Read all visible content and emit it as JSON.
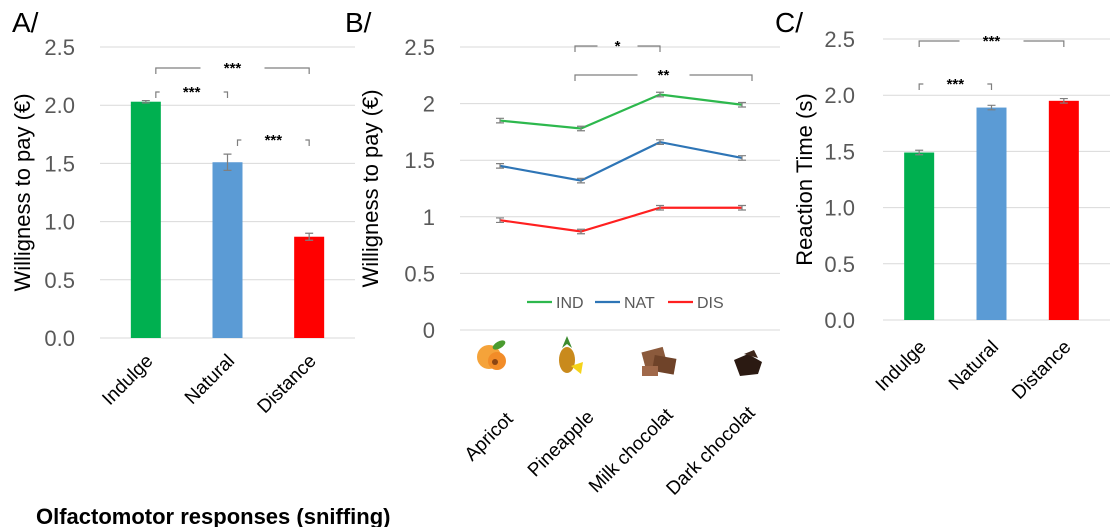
{
  "footer_text": "Olfactomotor responses (sniffing)",
  "chart_data": [
    {
      "type": "bar",
      "panel_label": "A/",
      "ylabel": "Willigness to pay (€)",
      "ylim": [
        0,
        2.5
      ],
      "yticks": [
        "0.0",
        "0.5",
        "1.0",
        "1.5",
        "2.0",
        "2.5"
      ],
      "categories": [
        "Indulge",
        "Natural",
        "Distance"
      ],
      "values": [
        2.03,
        1.51,
        0.87
      ],
      "errors": [
        0.01,
        0.07,
        0.03
      ],
      "colors": [
        "#00b050",
        "#5b9bd5",
        "#ff0000"
      ],
      "grid": true,
      "significance": [
        {
          "from": 0,
          "to": 1,
          "label": "***"
        },
        {
          "from": 1,
          "to": 2,
          "label": "***"
        },
        {
          "from": 0,
          "to": 2,
          "label": "***"
        }
      ]
    },
    {
      "type": "line",
      "panel_label": "B/",
      "ylabel": "Willigness to pay (€)",
      "ylim": [
        0,
        2.5
      ],
      "yticks": [
        "0",
        "0.5",
        "1",
        "1.5",
        "2",
        "2.5"
      ],
      "categories": [
        "Apricot",
        "Pineapple",
        "Milk chocolat",
        "Dark chocolat"
      ],
      "series": [
        {
          "name": "IND",
          "color": "#2db84d",
          "values": [
            1.85,
            1.78,
            2.08,
            1.99
          ],
          "errors": [
            0.02,
            0.02,
            0.02,
            0.02
          ]
        },
        {
          "name": "NAT",
          "color": "#2e75b6",
          "values": [
            1.45,
            1.32,
            1.66,
            1.52
          ],
          "errors": [
            0.02,
            0.02,
            0.02,
            0.02
          ]
        },
        {
          "name": "DIS",
          "color": "#ff2020",
          "values": [
            0.97,
            0.87,
            1.08,
            1.08
          ],
          "errors": [
            0.02,
            0.02,
            0.02,
            0.02
          ]
        }
      ],
      "legend_position": "bottom-inside",
      "grid": true,
      "food_icons": [
        "apricot-icon",
        "pineapple-icon",
        "milk-chocolate-icon",
        "dark-chocolate-icon"
      ],
      "significance": [
        {
          "from": 1,
          "to": 2,
          "label": "*"
        },
        {
          "from": 1,
          "to": 3,
          "label": "**"
        }
      ]
    },
    {
      "type": "bar",
      "panel_label": "C/",
      "ylabel": "Reaction  Time (s)",
      "ylim": [
        0,
        2.5
      ],
      "yticks": [
        "0.0",
        "0.5",
        "1.0",
        "1.5",
        "2.0",
        "2.5"
      ],
      "categories": [
        "Indulge",
        "Natural",
        "Distance"
      ],
      "values": [
        1.49,
        1.89,
        1.95
      ],
      "errors": [
        0.02,
        0.02,
        0.02
      ],
      "colors": [
        "#00b050",
        "#5b9bd5",
        "#ff0000"
      ],
      "grid": true,
      "significance": [
        {
          "from": 0,
          "to": 1,
          "label": "***"
        },
        {
          "from": 0,
          "to": 2,
          "label": "***"
        }
      ]
    }
  ]
}
